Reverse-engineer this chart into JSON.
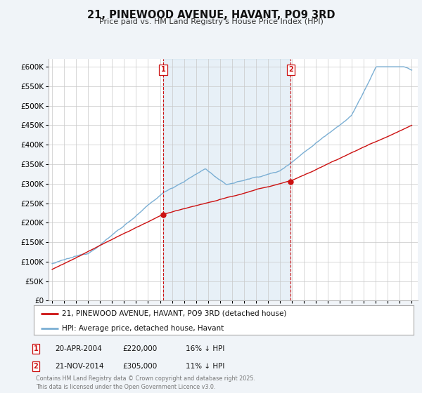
{
  "title": "21, PINEWOOD AVENUE, HAVANT, PO9 3RD",
  "subtitle": "Price paid vs. HM Land Registry's House Price Index (HPI)",
  "ytick_values": [
    0,
    50000,
    100000,
    150000,
    200000,
    250000,
    300000,
    350000,
    400000,
    450000,
    500000,
    550000,
    600000
  ],
  "ylim": [
    0,
    620000
  ],
  "xlim_left": 1994.7,
  "xlim_right": 2025.5,
  "hpi_color": "#7bafd4",
  "hpi_fill_color": "#ddeeff",
  "price_color": "#cc1111",
  "marker1_date": 2004.28,
  "marker1_price": 220000,
  "marker2_date": 2014.9,
  "marker2_price": 305000,
  "legend_label1": "21, PINEWOOD AVENUE, HAVANT, PO9 3RD (detached house)",
  "legend_label2": "HPI: Average price, detached house, Havant",
  "marker1_text1": "20-APR-2004",
  "marker1_text2": "£220,000",
  "marker1_text3": "16% ↓ HPI",
  "marker2_text1": "21-NOV-2014",
  "marker2_text2": "£305,000",
  "marker2_text3": "11% ↓ HPI",
  "footer": "Contains HM Land Registry data © Crown copyright and database right 2025.\nThis data is licensed under the Open Government Licence v3.0.",
  "background_color": "#f0f4f8",
  "plot_bg_color": "#ffffff"
}
